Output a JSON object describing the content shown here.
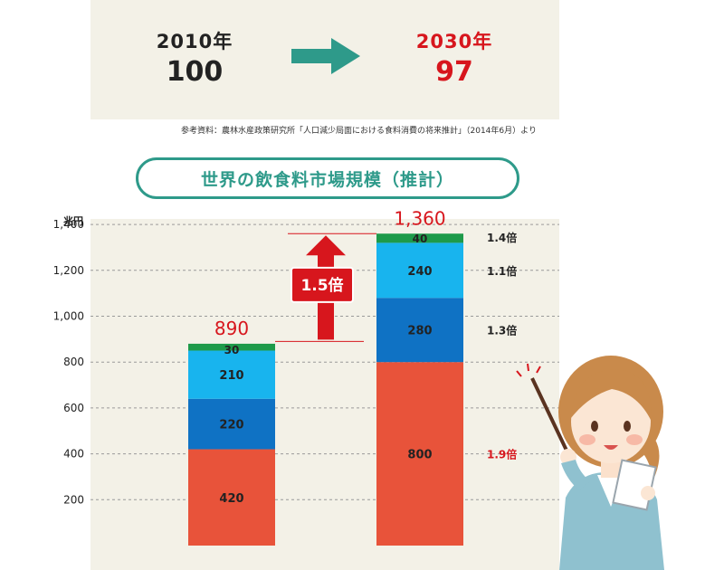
{
  "comparison": {
    "from": {
      "year": "2010年",
      "value": "100"
    },
    "to": {
      "year": "2030年",
      "value": "97"
    }
  },
  "source_note": "参考資料：農林水産政策研究所「人口減少局面における食料消費の将来推計」（2014年6月）より",
  "title": "世界の飲食料市場規模（推計）",
  "colors": {
    "panel_bg": "#f3f1e7",
    "teal": "#2e9a8a",
    "red": "#d7161d",
    "orange_red": "#e8533a",
    "dark_blue": "#0f72c4",
    "light_blue": "#18b4ee",
    "green": "#1e9a4a"
  },
  "chart_data": {
    "type": "bar",
    "stacked": true,
    "ylabel": "兆円",
    "ylim": [
      0,
      1480
    ],
    "yticks": [
      200,
      400,
      600,
      800,
      1000,
      1200,
      1400
    ],
    "ytick_labels": [
      "200",
      "400",
      "600",
      "800",
      "1,000",
      "1,200",
      "1,400"
    ],
    "grid": true,
    "bars": [
      {
        "total_label": "890",
        "segments": [
          {
            "value": 420,
            "label": "420",
            "color": "#e8533a"
          },
          {
            "value": 220,
            "label": "220",
            "color": "#0f72c4"
          },
          {
            "value": 210,
            "label": "210",
            "color": "#18b4ee"
          },
          {
            "value": 30,
            "label": "30",
            "color": "#1e9a4a"
          }
        ]
      },
      {
        "total_label": "1,360",
        "segments": [
          {
            "value": 800,
            "label": "800",
            "color": "#e8533a",
            "ratio": "1.9倍",
            "ratio_color": "#d7161d"
          },
          {
            "value": 280,
            "label": "280",
            "color": "#0f72c4",
            "ratio": "1.3倍",
            "ratio_color": "#222222"
          },
          {
            "value": 240,
            "label": "240",
            "color": "#18b4ee",
            "ratio": "1.1倍",
            "ratio_color": "#222222"
          },
          {
            "value": 40,
            "label": "40",
            "color": "#1e9a4a",
            "ratio": "1.4倍",
            "ratio_color": "#222222"
          }
        ]
      }
    ],
    "growth_label": "1.5倍",
    "growth_from": 890,
    "growth_to": 1360
  }
}
